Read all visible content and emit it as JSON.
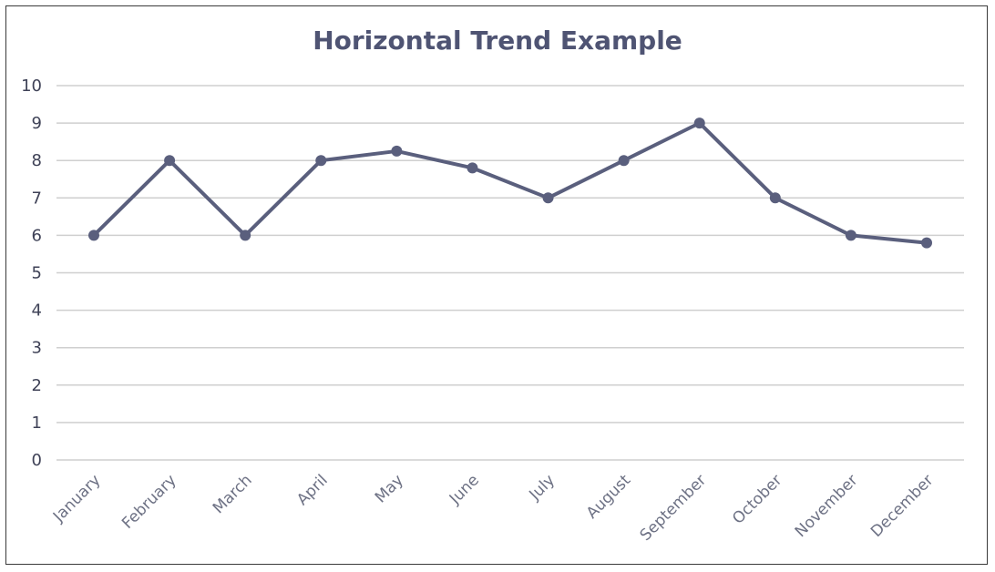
{
  "chart_data": {
    "type": "line",
    "title": "Horizontal Trend Example",
    "xlabel": "",
    "ylabel": "",
    "categories": [
      "January",
      "February",
      "March",
      "April",
      "May",
      "June",
      "July",
      "August",
      "September",
      "October",
      "November",
      "December"
    ],
    "series": [
      {
        "values": [
          6,
          8,
          6,
          8,
          8.25,
          7.8,
          7,
          8,
          9,
          7,
          6,
          5.8
        ]
      }
    ],
    "ylim": [
      0,
      10
    ],
    "yticks": [
      "0",
      "1",
      "2",
      "3",
      "4",
      "5",
      "6",
      "7",
      "8",
      "9",
      "10"
    ],
    "grid": true,
    "legend": "none"
  },
  "colors": {
    "line": "#5a5f7d",
    "grid": "#cfcfcf",
    "title": "#4f5473"
  }
}
